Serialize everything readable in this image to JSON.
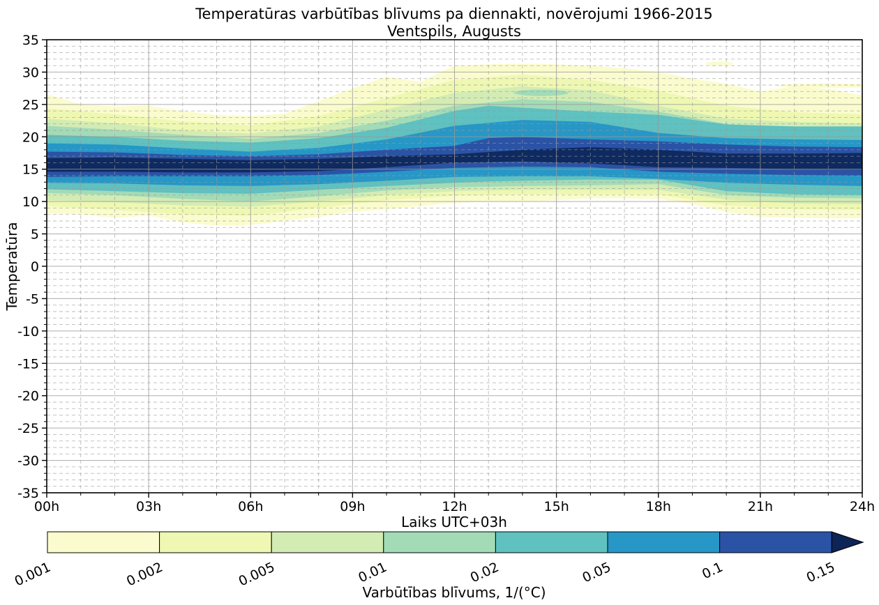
{
  "title": {
    "line1": "Temperatūras varbūtības blīvums pa diennakti, novērojumi 1966-2015",
    "line2": "Ventspils, Augusts"
  },
  "axes": {
    "x_label": "Laiks UTC+03h",
    "y_label": "Temperatūra",
    "x_tick_labels": [
      "00h",
      "03h",
      "06h",
      "09h",
      "12h",
      "15h",
      "18h",
      "21h",
      "24h"
    ],
    "x_tick_hours": [
      0,
      3,
      6,
      9,
      12,
      15,
      18,
      21,
      24
    ],
    "y_tick_values": [
      35,
      30,
      25,
      20,
      15,
      10,
      5,
      0,
      -5,
      -10,
      -15,
      -20,
      -25,
      -30,
      -35
    ],
    "x_range_hours": [
      0,
      24
    ],
    "y_range": [
      -35,
      35
    ],
    "minor_step_x_hours": 1,
    "minor_step_y_deg": 1,
    "grid": "major-solid-minor-dashed"
  },
  "colorbar": {
    "label": "Varbūtības blīvums, 1/(°C)",
    "tick_labels": [
      "0.001",
      "0.002",
      "0.005",
      "0.01",
      "0.02",
      "0.05",
      "0.1",
      "0.15"
    ],
    "segment_colors": [
      "#fbfccd",
      "#eef8b2",
      "#d3ecb4",
      "#a3dbb7",
      "#5fc1c0",
      "#2697c6",
      "#2b53a5"
    ],
    "arrow_color": "#0d2456"
  },
  "chart_data": {
    "type": "heatmap",
    "subtype": "filled-contour-probability-density",
    "xlabel": "Laiks UTC+03h",
    "ylabel": "Temperatūra",
    "xlim_hours": [
      0,
      24
    ],
    "ylim": [
      -35,
      35
    ],
    "levels": [
      0.001,
      0.002,
      0.005,
      0.01,
      0.02,
      0.05,
      0.1,
      0.15
    ],
    "bands": [
      {
        "level": 0.001,
        "color": "#fbfccd",
        "t": [
          0,
          1,
          2,
          3,
          4,
          5,
          6,
          7,
          8,
          9,
          10,
          11,
          12,
          13,
          14,
          15,
          16,
          17,
          18,
          19,
          20,
          21,
          22,
          23,
          24
        ],
        "upper": [
          26.6,
          25.0,
          24.7,
          24.8,
          24.0,
          23.4,
          23.2,
          23.6,
          25.5,
          27.5,
          29.3,
          28.5,
          31.0,
          31.2,
          31.3,
          31.2,
          31.0,
          30.6,
          30.0,
          29.0,
          28.2,
          27.0,
          27.8,
          27.4,
          26.4
        ],
        "lower": [
          8.2,
          8.0,
          7.5,
          7.8,
          6.8,
          6.3,
          6.4,
          7.0,
          7.6,
          8.4,
          8.8,
          9.3,
          9.8,
          10.0,
          10.0,
          10.2,
          10.5,
          10.5,
          10.4,
          9.6,
          8.4,
          7.6,
          7.5,
          7.4,
          7.4
        ]
      },
      {
        "level": 0.002,
        "color": "#eef8b2",
        "t": [
          0,
          2,
          4,
          6,
          8,
          10,
          12,
          14,
          16,
          18,
          20,
          22,
          24
        ],
        "upper": [
          24.4,
          23.5,
          22.4,
          21.8,
          23.2,
          26.0,
          28.8,
          29.6,
          28.8,
          27.1,
          24.8,
          23.8,
          23.5
        ],
        "lower": [
          9.3,
          8.7,
          8.0,
          7.8,
          9.0,
          10.2,
          10.9,
          11.1,
          11.1,
          11.1,
          9.4,
          8.8,
          8.7
        ]
      },
      {
        "level": 0.005,
        "color": "#d3ecb4",
        "t": [
          0,
          2,
          4,
          6,
          8,
          10,
          12,
          14,
          16,
          18,
          20,
          22,
          24
        ],
        "upper": [
          22.8,
          22.1,
          21.0,
          20.5,
          21.6,
          24.2,
          26.8,
          27.8,
          27.2,
          24.8,
          22.8,
          22.3,
          22.1
        ],
        "lower": [
          10.2,
          9.9,
          9.4,
          9.2,
          10.0,
          11.0,
          11.6,
          11.8,
          11.8,
          11.8,
          10.3,
          9.7,
          9.6
        ]
      },
      {
        "level": 0.01,
        "color": "#a3dbb7",
        "t": [
          0,
          2,
          4,
          6,
          8,
          10,
          12,
          14,
          16,
          18,
          20,
          22,
          24
        ],
        "upper": [
          21.7,
          21.1,
          20.3,
          19.7,
          20.6,
          22.5,
          24.8,
          25.8,
          25.4,
          23.9,
          22.0,
          21.5,
          21.3
        ],
        "lower": [
          11.3,
          11.0,
          10.4,
          10.0,
          10.8,
          11.7,
          12.2,
          12.4,
          12.5,
          12.7,
          11.0,
          10.6,
          10.5
        ]
      },
      {
        "level": 0.02,
        "color": "#5fc1c0",
        "t": [
          0,
          2,
          4,
          6,
          8,
          10,
          12,
          13,
          14,
          16,
          18,
          20,
          22,
          24
        ],
        "upper": [
          20.3,
          20.0,
          19.4,
          19.1,
          19.8,
          21.4,
          24.0,
          24.8,
          24.5,
          23.9,
          23.4,
          21.9,
          21.6,
          21.6
        ],
        "lower": [
          11.9,
          11.6,
          11.3,
          11.2,
          11.8,
          12.4,
          12.9,
          13.1,
          13.2,
          13.4,
          13.4,
          11.6,
          11.1,
          11.0
        ]
      },
      {
        "level": 0.05,
        "color": "#2697c6",
        "t": [
          0,
          2,
          4,
          6,
          8,
          10,
          12,
          14,
          16,
          18,
          20,
          22,
          24
        ],
        "upper": [
          19.0,
          18.8,
          18.2,
          17.7,
          18.3,
          19.6,
          21.7,
          22.6,
          22.3,
          20.6,
          19.8,
          19.6,
          19.5
        ],
        "lower": [
          12.9,
          12.8,
          12.5,
          12.4,
          12.7,
          13.2,
          13.8,
          13.9,
          13.9,
          13.5,
          12.9,
          12.6,
          12.4
        ]
      },
      {
        "level": 0.1,
        "color": "#2b53a5",
        "t": [
          0,
          2,
          4,
          6,
          8,
          10,
          12,
          13,
          14,
          16,
          18,
          20,
          22,
          24
        ],
        "upper": [
          17.7,
          17.6,
          17.2,
          17.0,
          17.3,
          18.0,
          18.6,
          19.8,
          20.0,
          19.6,
          19.3,
          18.8,
          18.5,
          18.4
        ],
        "lower": [
          13.8,
          13.9,
          13.9,
          13.9,
          14.1,
          14.6,
          15.2,
          15.3,
          15.4,
          15.3,
          14.6,
          14.3,
          14.1,
          14.0
        ]
      },
      {
        "level": 0.15,
        "color": "#0e2a60",
        "t": [
          0,
          2,
          4,
          6,
          8,
          10,
          12,
          14,
          16,
          18,
          20,
          22,
          24
        ],
        "upper": [
          16.7,
          16.8,
          16.6,
          16.4,
          16.6,
          17.0,
          17.3,
          18.0,
          18.4,
          18.0,
          17.4,
          17.4,
          17.5
        ],
        "lower": [
          14.6,
          14.6,
          14.5,
          14.5,
          14.7,
          15.3,
          16.0,
          16.2,
          15.9,
          15.3,
          15.2,
          15.0,
          14.9
        ]
      }
    ],
    "islands": [
      {
        "name": "afternoon-0.01-pocket",
        "level": 0.01,
        "color": "#a3dbb7",
        "t_center": 14.55,
        "temp_center": 26.8,
        "t_radius": 0.8,
        "temp_radius": 0.5
      },
      {
        "name": "evening-0.001-dot",
        "level": 0.001,
        "color": "#fbfccd",
        "t_center": 19.8,
        "temp_center": 31.3,
        "t_radius": 0.4,
        "temp_radius": 0.33
      },
      {
        "name": "late-evening-0.001-streak",
        "level": 0.001,
        "color": "#fbfccd",
        "t_center": 23.0,
        "temp_center": 27.9,
        "t_radius": 1.55,
        "temp_radius": 0.33
      }
    ]
  },
  "style_colors": {
    "axis": "#000000",
    "grid_major": "#999999",
    "grid_minor": "#999999",
    "background": "#ffffff"
  }
}
